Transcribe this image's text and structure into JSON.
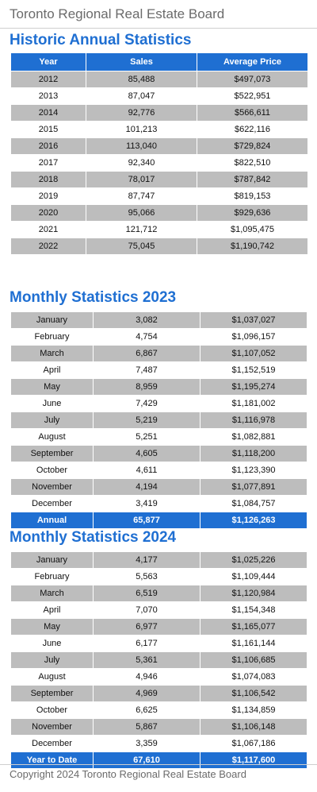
{
  "header": {
    "title": "Toronto Regional Real Estate Board"
  },
  "historic": {
    "title": "Historic Annual Statistics",
    "columns": [
      "Year",
      "Sales",
      "Average Price"
    ],
    "rows": [
      [
        "2012",
        "85,488",
        "$497,073"
      ],
      [
        "2013",
        "87,047",
        "$522,951"
      ],
      [
        "2014",
        "92,776",
        "$566,611"
      ],
      [
        "2015",
        "101,213",
        "$622,116"
      ],
      [
        "2016",
        "113,040",
        "$729,824"
      ],
      [
        "2017",
        "92,340",
        "$822,510"
      ],
      [
        "2018",
        "78,017",
        "$787,842"
      ],
      [
        "2019",
        "87,747",
        "$819,153"
      ],
      [
        "2020",
        "95,066",
        "$929,636"
      ],
      [
        "2021",
        "121,712",
        "$1,095,475"
      ],
      [
        "2022",
        "75,045",
        "$1,190,742"
      ]
    ]
  },
  "monthly2023": {
    "title": "Monthly Statistics 2023",
    "rows": [
      [
        "January",
        "3,082",
        "$1,037,027"
      ],
      [
        "February",
        "4,754",
        "$1,096,157"
      ],
      [
        "March",
        "6,867",
        "$1,107,052"
      ],
      [
        "April",
        "7,487",
        "$1,152,519"
      ],
      [
        "May",
        "8,959",
        "$1,195,274"
      ],
      [
        "June",
        "7,429",
        "$1,181,002"
      ],
      [
        "July",
        "5,219",
        "$1,116,978"
      ],
      [
        "August",
        "5,251",
        "$1,082,881"
      ],
      [
        "September",
        "4,605",
        "$1,118,200"
      ],
      [
        "October",
        "4,611",
        "$1,123,390"
      ],
      [
        "November",
        "4,194",
        "$1,077,891"
      ],
      [
        "December",
        "3,419",
        "$1,084,757"
      ]
    ],
    "total": [
      "Annual",
      "65,877",
      "$1,126,263"
    ]
  },
  "monthly2024": {
    "title": "Monthly Statistics 2024",
    "rows": [
      [
        "January",
        "4,177",
        "$1,025,226"
      ],
      [
        "February",
        "5,563",
        "$1,109,444"
      ],
      [
        "March",
        "6,519",
        "$1,120,984"
      ],
      [
        "April",
        "7,070",
        "$1,154,348"
      ],
      [
        "May",
        "6,977",
        "$1,165,077"
      ],
      [
        "June",
        "6,177",
        "$1,161,144"
      ],
      [
        "July",
        "5,361",
        "$1,106,685"
      ],
      [
        "August",
        "4,946",
        "$1,074,083"
      ],
      [
        "September",
        "4,969",
        "$1,106,542"
      ],
      [
        "October",
        "6,625",
        "$1,134,859"
      ],
      [
        "November",
        "5,867",
        "$1,106,148"
      ],
      [
        "December",
        "3,359",
        "$1,067,186"
      ]
    ],
    "total": [
      "Year to Date",
      "67,610",
      "$1,117,600"
    ]
  },
  "footer": {
    "copyright": "Copyright 2024 Toronto Regional Real Estate Board"
  },
  "colors": {
    "accent": "#1f6fd2",
    "row_gray": "#bdbdbd",
    "text_muted": "#6b6b6b"
  }
}
